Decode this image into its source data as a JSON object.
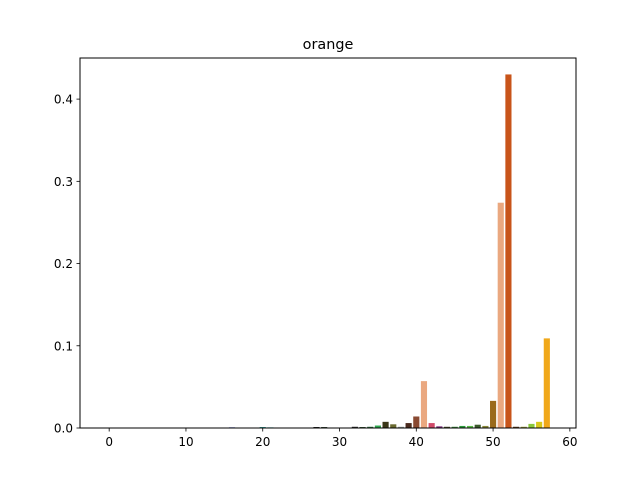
{
  "chart_data": {
    "type": "bar",
    "title": "orange",
    "xlabel": "",
    "ylabel": "",
    "xlim": [
      -3.8,
      60.8
    ],
    "ylim": [
      0,
      0.45
    ],
    "x_ticks": [
      0,
      10,
      20,
      30,
      40,
      50,
      60
    ],
    "x_tick_labels": [
      "0",
      "10",
      "20",
      "30",
      "40",
      "50",
      "60"
    ],
    "y_ticks": [
      0.0,
      0.1,
      0.2,
      0.3,
      0.4
    ],
    "y_tick_labels": [
      "0.0",
      "0.1",
      "0.2",
      "0.3",
      "0.4"
    ],
    "grid": false,
    "legend": "none",
    "bars": [
      {
        "x": 0,
        "value": 0.0,
        "color": "#f0f0f0"
      },
      {
        "x": 1,
        "value": 0.0,
        "color": "#f0f0f0"
      },
      {
        "x": 2,
        "value": 0.0,
        "color": "#f0f0f0"
      },
      {
        "x": 3,
        "value": 0.0,
        "color": "#f0f0f0"
      },
      {
        "x": 4,
        "value": 0.0,
        "color": "#f0f0f0"
      },
      {
        "x": 5,
        "value": 0.0,
        "color": "#f0f0f0"
      },
      {
        "x": 6,
        "value": 0.0,
        "color": "#f0f0f0"
      },
      {
        "x": 7,
        "value": 0.0,
        "color": "#f0f0f0"
      },
      {
        "x": 8,
        "value": 0.0,
        "color": "#f0f0f0"
      },
      {
        "x": 9,
        "value": 0.0,
        "color": "#f0f0f0"
      },
      {
        "x": 10,
        "value": 0.0,
        "color": "#f0f0f0"
      },
      {
        "x": 11,
        "value": 0.0,
        "color": "#f0f0f0"
      },
      {
        "x": 12,
        "value": 0.0,
        "color": "#f0f0f0"
      },
      {
        "x": 13,
        "value": 0.0,
        "color": "#f0f0f0"
      },
      {
        "x": 14,
        "value": 0.0,
        "color": "#f0f0f0"
      },
      {
        "x": 15,
        "value": 0.0,
        "color": "#f0f0f0"
      },
      {
        "x": 16,
        "value": 0.0008,
        "color": "#2a3fbf"
      },
      {
        "x": 17,
        "value": 0.0,
        "color": "#f0f0f0"
      },
      {
        "x": 18,
        "value": 0.0,
        "color": "#f0f0f0"
      },
      {
        "x": 19,
        "value": 0.0,
        "color": "#f0f0f0"
      },
      {
        "x": 20,
        "value": 0.0012,
        "color": "#3aa7a0"
      },
      {
        "x": 21,
        "value": 0.0008,
        "color": "#4fc7c0"
      },
      {
        "x": 22,
        "value": 0.0,
        "color": "#f0f0f0"
      },
      {
        "x": 23,
        "value": 0.0,
        "color": "#f0f0f0"
      },
      {
        "x": 24,
        "value": 0.0,
        "color": "#f0f0f0"
      },
      {
        "x": 25,
        "value": 0.0,
        "color": "#f0f0f0"
      },
      {
        "x": 26,
        "value": 0.0,
        "color": "#f0f0f0"
      },
      {
        "x": 27,
        "value": 0.0012,
        "color": "#222222"
      },
      {
        "x": 28,
        "value": 0.0012,
        "color": "#3b4a3a"
      },
      {
        "x": 29,
        "value": 0.0,
        "color": "#f0f0f0"
      },
      {
        "x": 30,
        "value": 0.0,
        "color": "#f0f0f0"
      },
      {
        "x": 31,
        "value": 0.0,
        "color": "#f0f0f0"
      },
      {
        "x": 32,
        "value": 0.0015,
        "color": "#2a2a2a"
      },
      {
        "x": 33,
        "value": 0.0012,
        "color": "#3a5a3a"
      },
      {
        "x": 34,
        "value": 0.0015,
        "color": "#2f6f3f"
      },
      {
        "x": 35,
        "value": 0.003,
        "color": "#2fa84f"
      },
      {
        "x": 36,
        "value": 0.0075,
        "color": "#3a3618"
      },
      {
        "x": 37,
        "value": 0.0045,
        "color": "#6a6a30"
      },
      {
        "x": 38,
        "value": 0.0015,
        "color": "#9aa0a0"
      },
      {
        "x": 39,
        "value": 0.006,
        "color": "#4a2a1e"
      },
      {
        "x": 40,
        "value": 0.014,
        "color": "#8a4a32"
      },
      {
        "x": 41,
        "value": 0.057,
        "color": "#eaa880"
      },
      {
        "x": 42,
        "value": 0.006,
        "color": "#d04a6a"
      },
      {
        "x": 43,
        "value": 0.002,
        "color": "#7a2a7a"
      },
      {
        "x": 44,
        "value": 0.0015,
        "color": "#4a4a2a"
      },
      {
        "x": 45,
        "value": 0.0015,
        "color": "#3a8a3a"
      },
      {
        "x": 46,
        "value": 0.0025,
        "color": "#2a9a3a"
      },
      {
        "x": 47,
        "value": 0.0025,
        "color": "#5aba4a"
      },
      {
        "x": 48,
        "value": 0.004,
        "color": "#3a5a2a"
      },
      {
        "x": 49,
        "value": 0.0025,
        "color": "#8a8a3a"
      },
      {
        "x": 50,
        "value": 0.033,
        "color": "#9a6a1a"
      },
      {
        "x": 51,
        "value": 0.274,
        "color": "#eaa880"
      },
      {
        "x": 52,
        "value": 0.43,
        "color": "#c8541a"
      },
      {
        "x": 53,
        "value": 0.0015,
        "color": "#5a3a1a"
      },
      {
        "x": 54,
        "value": 0.0015,
        "color": "#9a9a3a"
      },
      {
        "x": 55,
        "value": 0.005,
        "color": "#8ac83a"
      },
      {
        "x": 56,
        "value": 0.0075,
        "color": "#d8c81a"
      },
      {
        "x": 57,
        "value": 0.109,
        "color": "#f0a81a"
      }
    ]
  }
}
